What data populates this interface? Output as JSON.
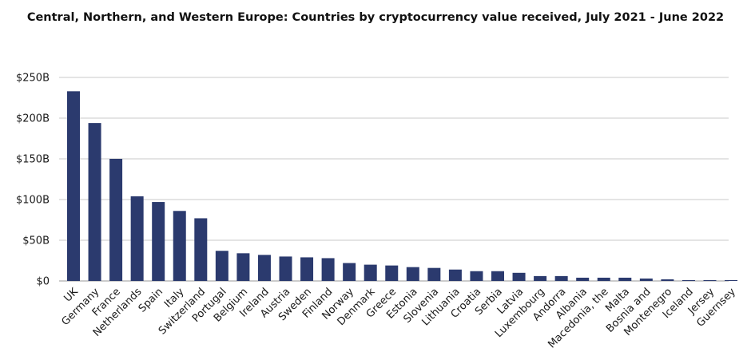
{
  "chart_data": {
    "type": "bar",
    "title": "Central, Northern, and Western Europe: Countries by cryptocurrency value received, July 2021 - June 2022",
    "xlabel": "",
    "ylabel": "",
    "ylim": [
      0,
      250
    ],
    "y_ticks": [
      {
        "value": 0,
        "label": "$0"
      },
      {
        "value": 50,
        "label": "$50B"
      },
      {
        "value": 100,
        "label": "$100B"
      },
      {
        "value": 150,
        "label": "$150B"
      },
      {
        "value": 200,
        "label": "$200B"
      },
      {
        "value": 250,
        "label": "$250B"
      }
    ],
    "grid": true,
    "bar_color": "#2b3a6e",
    "categories": [
      "UK",
      "Germany",
      "France",
      "Netherlands",
      "Spain",
      "Italy",
      "Switzerland",
      "Portugal",
      "Belgium",
      "Ireland",
      "Austria",
      "Sweden",
      "Finland",
      "Norway",
      "Denmark",
      "Greece",
      "Estonia",
      "Slovenia",
      "Lithuania",
      "Croatia",
      "Serbia",
      "Latvia",
      "Luxembourg",
      "Andorra",
      "Albania",
      "Macedonia, the",
      "Malta",
      "Bosnia and",
      "Montenegro",
      "Iceland",
      "Jersey",
      "Guernsey"
    ],
    "values": [
      233,
      194,
      150,
      104,
      97,
      86,
      77,
      37,
      34,
      32,
      30,
      29,
      28,
      22,
      20,
      19,
      17,
      16,
      14,
      12,
      12,
      10,
      6,
      6,
      4,
      4,
      4,
      3,
      2,
      1,
      1,
      0
    ]
  }
}
